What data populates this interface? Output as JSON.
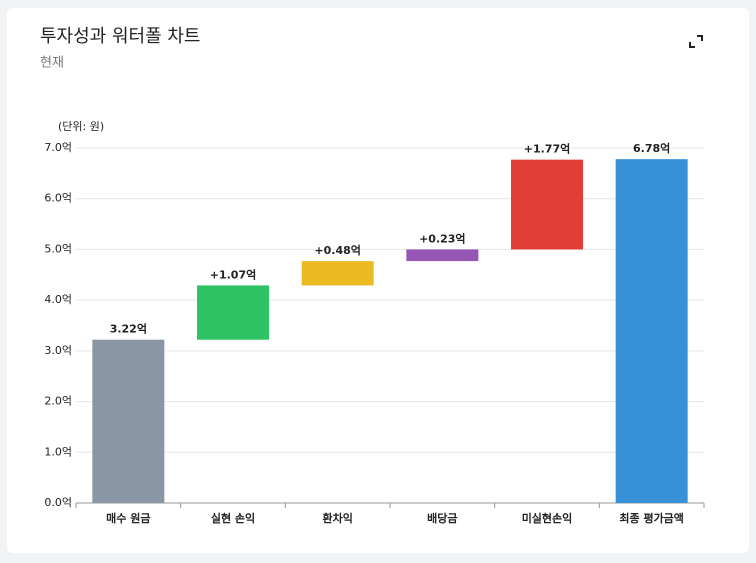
{
  "chart_data": {
    "type": "waterfall",
    "title": "투자성과 워터폴 차트",
    "subtitle": "현재",
    "unit_label": "(단위: 원)",
    "categories": [
      "매수 원금",
      "실현 손익",
      "환차익",
      "배당금",
      "미실현손익",
      "최종 평가금액"
    ],
    "values": [
      3.22,
      1.07,
      0.48,
      0.23,
      1.77,
      6.78
    ],
    "value_labels": [
      "3.22억",
      "+1.07억",
      "+0.48억",
      "+0.23억",
      "+1.77억",
      "6.78억"
    ],
    "colors": [
      "#8a96a3",
      "#2ec466",
      "#ecbb23",
      "#9556b4",
      "#e33e35",
      "#3891d6"
    ],
    "ylim": [
      0,
      7
    ],
    "yticks": [
      {
        "value": 0,
        "label": "0.0억"
      },
      {
        "value": 1,
        "label": "1.0억"
      },
      {
        "value": 2,
        "label": "2.0억"
      },
      {
        "value": 3,
        "label": "3.0억"
      },
      {
        "value": 4,
        "label": "4.0억"
      },
      {
        "value": 5,
        "label": "5.0억"
      },
      {
        "value": 6,
        "label": "6.0억"
      },
      {
        "value": 7,
        "label": "7.0억"
      }
    ],
    "grid": true
  }
}
